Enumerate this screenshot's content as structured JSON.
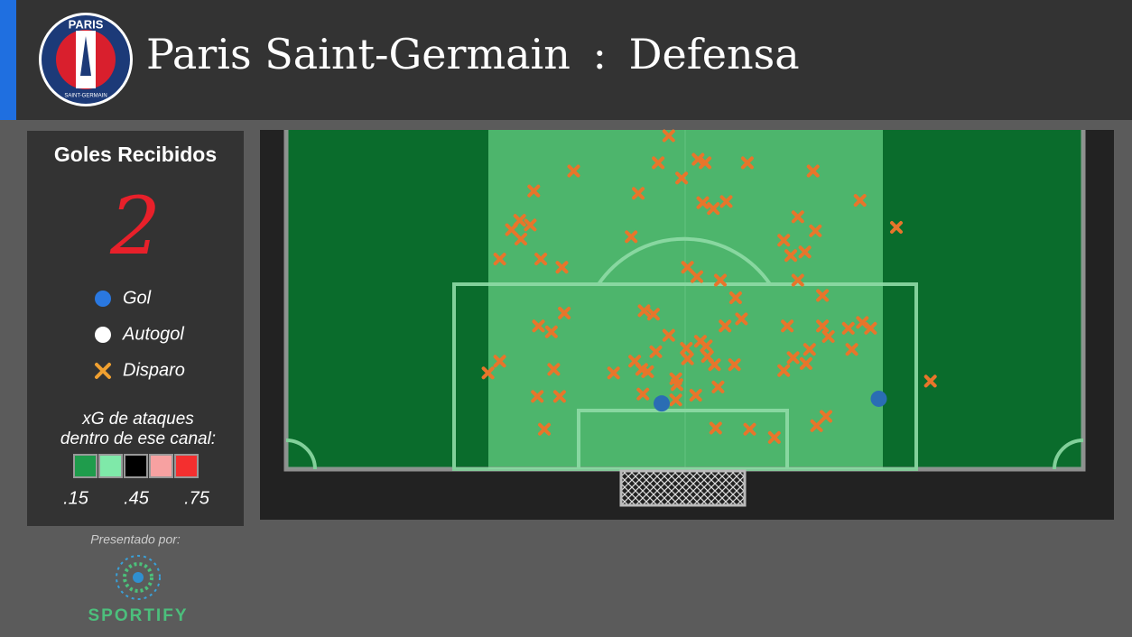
{
  "header": {
    "title": "Paris Saint-Germain",
    "separator": ":",
    "subtitle": "Defensa",
    "logo": {
      "top": "PARIS",
      "bottom": "SAINT-GERMAIN"
    }
  },
  "sidebar": {
    "goals_title": "Goles Recibidos",
    "goals_count": 2,
    "xg_label": [
      "xG de ataques",
      "dentro de ese canal:"
    ],
    "xg_colors": [
      "#1f9c4c",
      "#7fe9a9",
      "#000000",
      "#f7a1a1",
      "#f42f2f"
    ],
    "xg_ticks": [
      {
        "value": 0.15,
        "label": ".15"
      },
      {
        "value": 0.45,
        "label": ".45"
      },
      {
        "value": 0.75,
        "label": ".75"
      }
    ],
    "presented_by": "Presentado por:",
    "sponsor": "SPORTIFY"
  },
  "chart_data": {
    "type": "scatter",
    "xlim": [
      0,
      68
    ],
    "ylim": [
      0,
      28.9
    ],
    "channels": [
      {
        "color": "#0a6c2c"
      },
      {
        "color": "#4db56c"
      },
      {
        "color": "#0a6c2c"
      }
    ],
    "series": [
      {
        "name": "Gol",
        "color": "#2a6db4",
        "marker": "circle",
        "x": [
          32.0,
          50.5
        ],
        "values": [
          5.6,
          6.0
        ]
      },
      {
        "name": "Autogol",
        "color": "#ffffff",
        "marker": "circle",
        "x": [],
        "values": []
      },
      {
        "name": "Disparo",
        "color": "#e8752b",
        "marker": "cross",
        "x": [
          32.6,
          24.5,
          31.7,
          35.1,
          35.7,
          39.3,
          44.9,
          21.1,
          30.0,
          33.7,
          48.9,
          35.5,
          36.4,
          37.5,
          19.9,
          20.8,
          19.2,
          20.0,
          52.0,
          43.6,
          45.1,
          29.4,
          42.4,
          18.2,
          21.7,
          23.5,
          43.0,
          44.2,
          34.2,
          35.0,
          37.0,
          43.6,
          38.3,
          45.7,
          23.7,
          30.5,
          31.3,
          38.8,
          37.4,
          21.5,
          22.6,
          42.7,
          45.7,
          47.9,
          49.1,
          49.8,
          46.2,
          32.6,
          35.3,
          35.8,
          34.1,
          31.5,
          34.2,
          35.9,
          36.5,
          38.2,
          44.6,
          43.2,
          44.3,
          48.2,
          18.2,
          17.2,
          22.8,
          27.9,
          29.7,
          30.3,
          30.8,
          33.2,
          33.3,
          42.4,
          36.8,
          21.4,
          23.3,
          30.4,
          34.9,
          33.2,
          54.9,
          22.0,
          36.6,
          39.5,
          41.6,
          45.2,
          46.0
        ],
        "values": [
          28.4,
          25.4,
          26.1,
          26.4,
          26.1,
          26.1,
          25.4,
          23.7,
          23.5,
          24.8,
          22.9,
          22.7,
          22.2,
          22.8,
          21.2,
          20.8,
          20.4,
          19.6,
          20.6,
          21.5,
          20.3,
          19.8,
          19.5,
          17.9,
          17.9,
          17.2,
          18.2,
          18.5,
          17.2,
          16.4,
          16.1,
          16.1,
          14.6,
          14.8,
          13.3,
          13.5,
          13.2,
          12.8,
          12.2,
          12.2,
          11.7,
          12.2,
          12.2,
          12.0,
          12.5,
          12.0,
          11.3,
          11.4,
          10.9,
          10.5,
          10.3,
          10.0,
          9.4,
          9.6,
          8.9,
          8.9,
          10.2,
          9.5,
          9.0,
          10.2,
          9.2,
          8.2,
          8.5,
          8.2,
          9.2,
          8.5,
          8.3,
          7.7,
          7.2,
          8.4,
          7.0,
          6.2,
          6.2,
          6.4,
          6.3,
          5.9,
          7.5,
          3.4,
          3.5,
          3.4,
          2.7,
          3.7,
          4.5
        ]
      }
    ]
  }
}
